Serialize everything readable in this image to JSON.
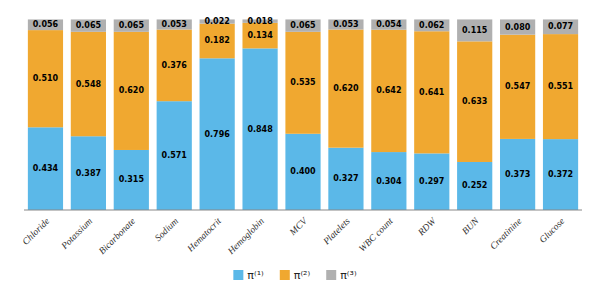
{
  "chart_data": {
    "type": "bar",
    "stacked": true,
    "data_labels": true,
    "tick_labels": "x",
    "grid": false,
    "legend": "bottom",
    "categories": [
      "Chloride",
      "Potassium",
      "Bicarbonate",
      "Sodium",
      "Hematocrit",
      "Hemoglobin",
      "MCV",
      "Platelets",
      "WBC count",
      "RDW",
      "BUN",
      "Creatinine",
      "Glucose"
    ],
    "ylim": [
      0,
      1.06
    ],
    "series": [
      {
        "name": "π⁽¹⁾",
        "color": "#5BB8E8",
        "values": [
          0.434,
          0.387,
          0.315,
          0.571,
          0.796,
          0.848,
          0.4,
          0.327,
          0.304,
          0.297,
          0.252,
          0.373,
          0.372
        ],
        "value_labels": [
          "0.434",
          "0.387",
          "0.315",
          "0.571",
          "0.796",
          "0.848",
          "0.400",
          "0.327",
          "0.304",
          "0.297",
          "0.252",
          "0.373",
          "0.372"
        ]
      },
      {
        "name": "π⁽²⁾",
        "color": "#F0A830",
        "values": [
          0.51,
          0.548,
          0.62,
          0.376,
          0.182,
          0.134,
          0.535,
          0.62,
          0.642,
          0.641,
          0.633,
          0.547,
          0.551
        ],
        "value_labels": [
          "0.510",
          "0.548",
          "0.620",
          "0.376",
          "0.182",
          "0.134",
          "0.535",
          "0.620",
          "0.642",
          "0.641",
          "0.633",
          "0.547",
          "0.551"
        ]
      },
      {
        "name": "π⁽³⁾",
        "color": "#B0B0B0",
        "values": [
          0.056,
          0.065,
          0.065,
          0.053,
          0.022,
          0.018,
          0.065,
          0.053,
          0.054,
          0.062,
          0.115,
          0.08,
          0.077
        ],
        "value_labels": [
          "0.056",
          "0.065",
          "0.065",
          "0.053",
          "0.022",
          "0.018",
          "0.065",
          "0.053",
          "0.054",
          "0.062",
          "0.115",
          "0.080",
          "0.077"
        ]
      }
    ]
  }
}
